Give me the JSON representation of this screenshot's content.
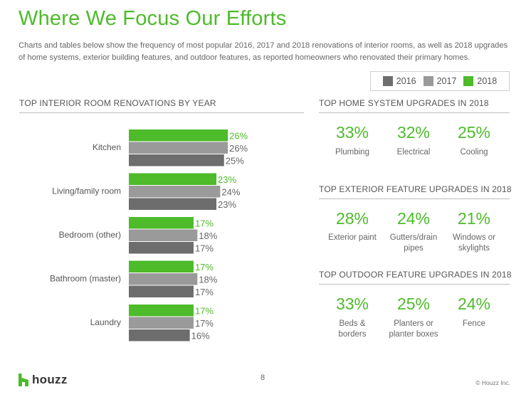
{
  "title": "Where We Focus Our Efforts",
  "intro": "Charts and tables below show the frequency of most popular 2016, 2017 and 2018 renovations of interior rooms, as well as 2018 upgrades of home systems, exterior building features, and outdoor features, as reported homeowners who renovated their primary homes.",
  "legend": [
    {
      "label": "2016",
      "color": "#6d6d6d"
    },
    {
      "label": "2017",
      "color": "#9a9a9a"
    },
    {
      "label": "2018",
      "color": "#4dbb2a"
    }
  ],
  "chart_title": "TOP INTERIOR ROOM RENOVATIONS BY YEAR",
  "chart_data": {
    "type": "bar",
    "orientation": "horizontal",
    "categories": [
      "Kitchen",
      "Living/family room",
      "Bedroom (other)",
      "Bathroom (master)",
      "Laundry"
    ],
    "series": [
      {
        "name": "2018",
        "values": [
          26,
          23,
          17,
          17,
          17
        ],
        "labels": [
          "26%",
          "23%",
          "17%",
          "17%",
          "17%"
        ],
        "color": "#4dbb2a"
      },
      {
        "name": "2017",
        "values": [
          26,
          24,
          18,
          18,
          17
        ],
        "labels": [
          "26%",
          "24%",
          "18%",
          "18%",
          "17%"
        ],
        "color": "#9a9a9a"
      },
      {
        "name": "2016",
        "values": [
          25,
          23,
          17,
          17,
          16
        ],
        "labels": [
          "25%",
          "23%",
          "17%",
          "17%",
          "16%"
        ],
        "color": "#6d6d6d"
      }
    ],
    "value_unit": "%"
  },
  "panels": [
    {
      "title": "TOP HOME SYSTEM UPGRADES IN 2018",
      "stats": [
        {
          "value": "33%",
          "label": [
            "Plumbing"
          ]
        },
        {
          "value": "32%",
          "label": [
            "Electrical"
          ]
        },
        {
          "value": "25%",
          "label": [
            "Cooling"
          ]
        }
      ]
    },
    {
      "title": "TOP EXTERIOR FEATURE UPGRADES IN 2018",
      "stats": [
        {
          "value": "28%",
          "label": [
            "Exterior paint"
          ]
        },
        {
          "value": "24%",
          "label": [
            "Gutters/drain",
            "pipes"
          ]
        },
        {
          "value": "21%",
          "label": [
            "Windows or",
            "skylights"
          ]
        }
      ]
    },
    {
      "title": "TOP OUTDOOR FEATURE UPGRADES IN 2018",
      "stats": [
        {
          "value": "33%",
          "label": [
            "Beds &",
            "borders"
          ]
        },
        {
          "value": "25%",
          "label": [
            "Planters or",
            "planter boxes"
          ]
        },
        {
          "value": "24%",
          "label": [
            "Fence"
          ]
        }
      ]
    }
  ],
  "footer": {
    "logo": "houzz",
    "page": "8",
    "copyright": "© Houzz Inc."
  }
}
